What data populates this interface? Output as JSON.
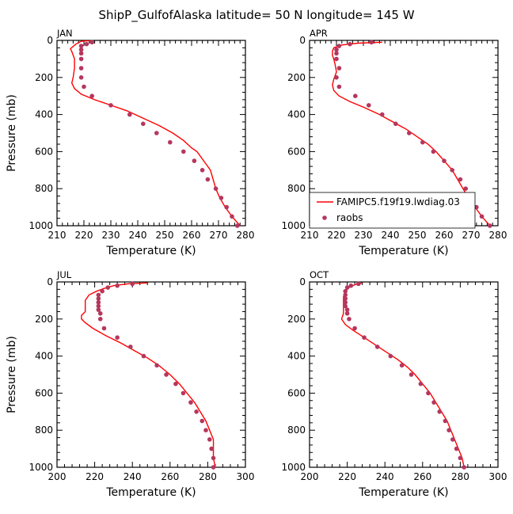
{
  "figure": {
    "title": "ShipP_GulfofAlaska  latitude= 50 N longitude= 145 W"
  },
  "colors": {
    "model": "#ff0000",
    "obs": "#b5375e",
    "axis": "#000000"
  },
  "legend": {
    "panel": 1,
    "placement": "lower-right",
    "entries": [
      {
        "label": "FAMIPC5.f19f19.lwdiag.03",
        "style": "line",
        "color": "#ff0000"
      },
      {
        "label": "raobs",
        "style": "marker",
        "color": "#b5375e"
      }
    ]
  },
  "chart_data": [
    {
      "type": "line",
      "panel_label": "JAN",
      "xlabel": "Temperature (K)",
      "ylabel": "Pressure (mb)",
      "xlim": [
        210,
        280
      ],
      "ylim": [
        1000,
        0
      ],
      "y_reversed": true,
      "xticks": [
        210,
        220,
        230,
        240,
        250,
        260,
        270,
        280
      ],
      "yticks": [
        0,
        200,
        400,
        600,
        800,
        1000
      ],
      "series": [
        {
          "name": "FAMIPC5.f19f19.lwdiag.03",
          "kind": "line",
          "points": [
            [
              223,
              0
            ],
            [
              219,
              5
            ],
            [
              217,
              20
            ],
            [
              215,
              45
            ],
            [
              215.5,
              60
            ],
            [
              216,
              80
            ],
            [
              216.5,
              100
            ],
            [
              216.5,
              150
            ],
            [
              216,
              200
            ],
            [
              215.5,
              230
            ],
            [
              216.5,
              260
            ],
            [
              219,
              290
            ],
            [
              224,
              320
            ],
            [
              230,
              350
            ],
            [
              236,
              380
            ],
            [
              242,
              420
            ],
            [
              248,
              460
            ],
            [
              253,
              500
            ],
            [
              257,
              540
            ],
            [
              260,
              580
            ],
            [
              262,
              600
            ],
            [
              264,
              640
            ],
            [
              266,
              680
            ],
            [
              267,
              700
            ],
            [
              268,
              750
            ],
            [
              269,
              800
            ],
            [
              270.5,
              850
            ],
            [
              272.5,
              900
            ],
            [
              275,
              950
            ],
            [
              278,
              1000
            ]
          ]
        },
        {
          "name": "raobs",
          "kind": "scatter",
          "points": [
            [
              223,
              10
            ],
            [
              221,
              20
            ],
            [
              219,
              30
            ],
            [
              219,
              50
            ],
            [
              219,
              70
            ],
            [
              219,
              100
            ],
            [
              219,
              150
            ],
            [
              219,
              200
            ],
            [
              220,
              250
            ],
            [
              223,
              300
            ],
            [
              230,
              350
            ],
            [
              237,
              400
            ],
            [
              242,
              450
            ],
            [
              247,
              500
            ],
            [
              252,
              550
            ],
            [
              257,
              600
            ],
            [
              261,
              650
            ],
            [
              264,
              700
            ],
            [
              266,
              750
            ],
            [
              269,
              800
            ],
            [
              271,
              850
            ],
            [
              273,
              900
            ],
            [
              275,
              950
            ],
            [
              277,
              1000
            ]
          ]
        }
      ]
    },
    {
      "type": "line",
      "panel_label": "APR",
      "xlabel": "Temperature (K)",
      "ylabel": "",
      "xlim": [
        210,
        280
      ],
      "ylim": [
        1000,
        0
      ],
      "y_reversed": true,
      "xticks": [
        210,
        220,
        230,
        240,
        250,
        260,
        270,
        280
      ],
      "yticks": [
        0,
        200,
        400,
        600,
        800,
        1000
      ],
      "series": [
        {
          "name": "FAMIPC5.f19f19.lwdiag.03",
          "kind": "line",
          "points": [
            [
              237,
              10
            ],
            [
              228,
              15
            ],
            [
              222,
              25
            ],
            [
              219,
              40
            ],
            [
              218.5,
              60
            ],
            [
              218.5,
              80
            ],
            [
              219,
              100
            ],
            [
              219.5,
              130
            ],
            [
              220,
              170
            ],
            [
              219,
              210
            ],
            [
              218.5,
              240
            ],
            [
              219,
              270
            ],
            [
              221,
              300
            ],
            [
              225,
              330
            ],
            [
              230,
              360
            ],
            [
              236,
              400
            ],
            [
              241,
              440
            ],
            [
              246,
              480
            ],
            [
              250,
              520
            ],
            [
              254,
              560
            ],
            [
              257,
              600
            ],
            [
              260,
              650
            ],
            [
              263,
              700
            ],
            [
              265,
              750
            ],
            [
              267,
              800
            ],
            [
              269,
              850
            ],
            [
              271.5,
              900
            ],
            [
              274,
              950
            ],
            [
              277,
              1000
            ]
          ]
        },
        {
          "name": "raobs",
          "kind": "scatter",
          "points": [
            [
              233,
              10
            ],
            [
              225,
              20
            ],
            [
              221,
              30
            ],
            [
              220,
              50
            ],
            [
              220,
              70
            ],
            [
              220,
              100
            ],
            [
              221,
              150
            ],
            [
              220,
              200
            ],
            [
              221,
              250
            ],
            [
              227,
              300
            ],
            [
              232,
              350
            ],
            [
              237,
              400
            ],
            [
              242,
              450
            ],
            [
              247,
              500
            ],
            [
              252,
              550
            ],
            [
              256,
              600
            ],
            [
              260,
              650
            ],
            [
              263,
              700
            ],
            [
              266,
              750
            ],
            [
              268,
              800
            ],
            [
              270,
              850
            ],
            [
              272,
              900
            ],
            [
              274,
              950
            ],
            [
              277,
              1000
            ]
          ]
        }
      ]
    },
    {
      "type": "line",
      "panel_label": "JUL",
      "xlabel": "Temperature (K)",
      "ylabel": "Pressure (mb)",
      "xlim": [
        200,
        300
      ],
      "ylim": [
        1000,
        0
      ],
      "y_reversed": true,
      "xticks": [
        200,
        220,
        240,
        260,
        280,
        300
      ],
      "yticks": [
        0,
        200,
        400,
        600,
        800,
        1000
      ],
      "series": [
        {
          "name": "FAMIPC5.f19f19.lwdiag.03",
          "kind": "line",
          "points": [
            [
              248,
              5
            ],
            [
              238,
              10
            ],
            [
              230,
              20
            ],
            [
              225,
              35
            ],
            [
              221,
              50
            ],
            [
              217,
              70
            ],
            [
              215,
              100
            ],
            [
              215,
              130
            ],
            [
              215,
              160
            ],
            [
              213,
              180
            ],
            [
              213,
              200
            ],
            [
              215,
              220
            ],
            [
              219,
              250
            ],
            [
              226,
              290
            ],
            [
              234,
              330
            ],
            [
              241,
              370
            ],
            [
              248,
              410
            ],
            [
              254,
              450
            ],
            [
              260,
              500
            ],
            [
              265,
              550
            ],
            [
              269,
              600
            ],
            [
              273,
              650
            ],
            [
              276,
              700
            ],
            [
              279,
              750
            ],
            [
              281,
              800
            ],
            [
              283,
              850
            ],
            [
              283,
              900
            ],
            [
              283,
              950
            ],
            [
              284,
              1000
            ]
          ]
        },
        {
          "name": "raobs",
          "kind": "scatter",
          "points": [
            [
              240,
              10
            ],
            [
              232,
              20
            ],
            [
              227,
              30
            ],
            [
              224,
              50
            ],
            [
              222,
              70
            ],
            [
              222,
              90
            ],
            [
              222,
              110
            ],
            [
              222,
              130
            ],
            [
              222,
              150
            ],
            [
              223,
              170
            ],
            [
              223,
              200
            ],
            [
              225,
              250
            ],
            [
              232,
              300
            ],
            [
              239,
              350
            ],
            [
              246,
              400
            ],
            [
              253,
              450
            ],
            [
              258,
              500
            ],
            [
              263,
              550
            ],
            [
              267,
              600
            ],
            [
              271,
              650
            ],
            [
              274,
              700
            ],
            [
              277,
              750
            ],
            [
              279,
              800
            ],
            [
              281,
              850
            ],
            [
              282,
              900
            ],
            [
              283,
              950
            ],
            [
              283,
              1000
            ]
          ]
        }
      ]
    },
    {
      "type": "line",
      "panel_label": "OCT",
      "xlabel": "Temperature (K)",
      "ylabel": "",
      "xlim": [
        200,
        300
      ],
      "ylim": [
        1000,
        0
      ],
      "y_reversed": true,
      "xticks": [
        200,
        220,
        240,
        260,
        280,
        300
      ],
      "yticks": [
        0,
        200,
        400,
        600,
        800,
        1000
      ],
      "series": [
        {
          "name": "FAMIPC5.f19f19.lwdiag.03",
          "kind": "line",
          "points": [
            [
              228,
              5
            ],
            [
              224,
              15
            ],
            [
              221,
              30
            ],
            [
              219,
              50
            ],
            [
              218,
              80
            ],
            [
              218,
              110
            ],
            [
              218,
              140
            ],
            [
              218,
              170
            ],
            [
              217,
              200
            ],
            [
              219,
              230
            ],
            [
              223,
              260
            ],
            [
              229,
              300
            ],
            [
              235,
              340
            ],
            [
              241,
              380
            ],
            [
              247,
              420
            ],
            [
              252,
              460
            ],
            [
              256,
              500
            ],
            [
              260,
              550
            ],
            [
              264,
              600
            ],
            [
              267,
              650
            ],
            [
              270,
              700
            ],
            [
              273,
              750
            ],
            [
              275,
              800
            ],
            [
              277,
              850
            ],
            [
              279,
              900
            ],
            [
              281,
              950
            ],
            [
              282,
              1000
            ]
          ]
        },
        {
          "name": "raobs",
          "kind": "scatter",
          "points": [
            [
              226,
              10
            ],
            [
              222,
              20
            ],
            [
              220,
              30
            ],
            [
              219,
              50
            ],
            [
              219,
              70
            ],
            [
              219,
              90
            ],
            [
              219,
              110
            ],
            [
              219,
              130
            ],
            [
              220,
              150
            ],
            [
              220,
              170
            ],
            [
              221,
              200
            ],
            [
              224,
              250
            ],
            [
              229,
              300
            ],
            [
              236,
              350
            ],
            [
              243,
              400
            ],
            [
              249,
              450
            ],
            [
              254,
              500
            ],
            [
              259,
              550
            ],
            [
              263,
              600
            ],
            [
              266,
              650
            ],
            [
              269,
              700
            ],
            [
              272,
              750
            ],
            [
              274,
              800
            ],
            [
              276,
              850
            ],
            [
              278,
              900
            ],
            [
              280,
              950
            ],
            [
              282,
              1000
            ]
          ]
        }
      ]
    }
  ]
}
